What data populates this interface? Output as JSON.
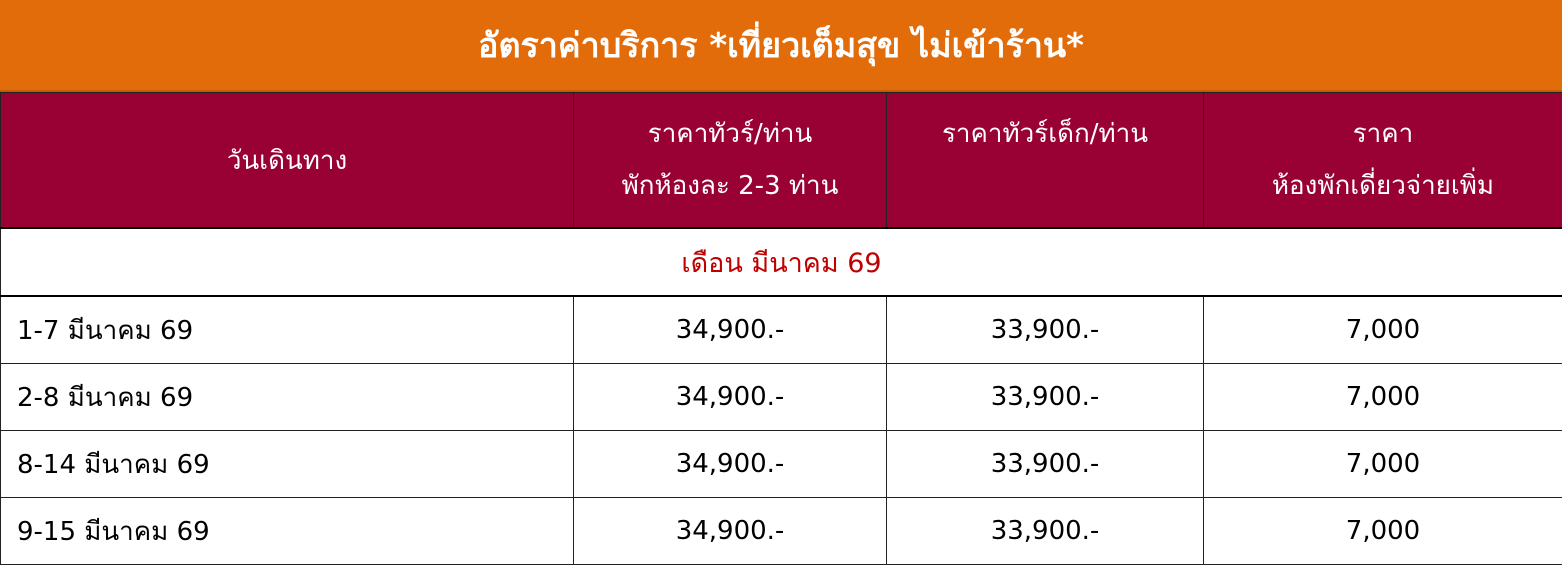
{
  "title": "อัตราค่าบริการ *เที่ยวเต็มสุข ไม่เข้าร้าน*",
  "colors": {
    "title_bg": "#E36C0A",
    "header_bg": "#990033",
    "month_text": "#C00000"
  },
  "headers": {
    "date": "วันเดินทาง",
    "adult_line1": "ราคาทัวร์/ท่าน",
    "adult_line2": "พักห้องละ 2-3 ท่าน",
    "child": "ราคาทัวร์เด็ก/ท่าน",
    "single_line1": "ราคา",
    "single_line2": "ห้องพักเดี่ยวจ่ายเพิ่ม"
  },
  "month_label": "เดือน มีนาคม 69",
  "rows": [
    {
      "date": "1-7 มีนาคม 69",
      "adult": "34,900.-",
      "child": "33,900.-",
      "single": "7,000"
    },
    {
      "date": "2-8 มีนาคม 69",
      "adult": "34,900.-",
      "child": "33,900.-",
      "single": "7,000"
    },
    {
      "date": "8-14 มีนาคม 69",
      "adult": "34,900.-",
      "child": "33,900.-",
      "single": "7,000"
    },
    {
      "date": "9-15 มีนาคม 69",
      "adult": "34,900.-",
      "child": "33,900.-",
      "single": "7,000"
    }
  ]
}
